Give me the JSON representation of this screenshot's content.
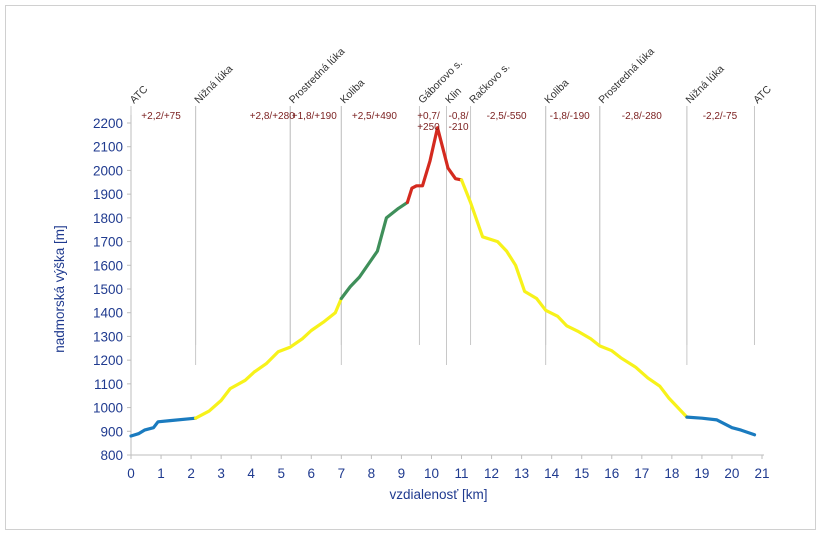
{
  "chart_data": {
    "type": "line",
    "title": "",
    "xlabel": "vzdialenosť [km]",
    "ylabel": "nadmorská výška [m]",
    "xlim": [
      0,
      21
    ],
    "ylim": [
      800,
      2200
    ],
    "xticks": [
      0,
      1,
      2,
      3,
      4,
      5,
      6,
      7,
      8,
      9,
      10,
      11,
      12,
      13,
      14,
      15,
      16,
      17,
      18,
      19,
      20,
      21
    ],
    "yticks": [
      800,
      900,
      1000,
      1100,
      1200,
      1300,
      1400,
      1500,
      1600,
      1700,
      1800,
      1900,
      2000,
      2100,
      2200
    ],
    "grid": false,
    "series": [
      {
        "color": "#1a7bbf",
        "points": [
          [
            0,
            880
          ],
          [
            0.25,
            890
          ],
          [
            0.45,
            905
          ],
          [
            0.75,
            915
          ],
          [
            0.9,
            940
          ],
          [
            1.3,
            945
          ],
          [
            2.15,
            955
          ]
        ]
      },
      {
        "color": "#f7f21a",
        "points": [
          [
            2.15,
            955
          ],
          [
            2.6,
            985
          ],
          [
            3.0,
            1030
          ],
          [
            3.3,
            1080
          ],
          [
            3.8,
            1115
          ],
          [
            4.1,
            1150
          ],
          [
            4.5,
            1185
          ],
          [
            4.9,
            1235
          ],
          [
            5.3,
            1255
          ],
          [
            5.7,
            1290
          ],
          [
            6.0,
            1325
          ],
          [
            6.4,
            1360
          ],
          [
            6.8,
            1400
          ],
          [
            7.0,
            1460
          ]
        ]
      },
      {
        "color": "#3f8f5a",
        "points": [
          [
            7.0,
            1460
          ],
          [
            7.3,
            1510
          ],
          [
            7.6,
            1550
          ],
          [
            7.9,
            1605
          ],
          [
            8.2,
            1660
          ],
          [
            8.5,
            1800
          ],
          [
            8.9,
            1840
          ],
          [
            9.2,
            1865
          ]
        ]
      },
      {
        "color": "#d42a1f",
        "points": [
          [
            9.2,
            1865
          ],
          [
            9.35,
            1925
          ],
          [
            9.5,
            1935
          ],
          [
            9.7,
            1935
          ],
          [
            9.95,
            2040
          ],
          [
            10.2,
            2180
          ],
          [
            10.55,
            2010
          ],
          [
            10.8,
            1965
          ],
          [
            11.0,
            1960
          ]
        ]
      },
      {
        "color": "#f7f21a",
        "points": [
          [
            11.0,
            1960
          ],
          [
            11.3,
            1865
          ],
          [
            11.7,
            1720
          ],
          [
            12.2,
            1700
          ],
          [
            12.5,
            1660
          ],
          [
            12.8,
            1600
          ],
          [
            13.1,
            1490
          ],
          [
            13.5,
            1460
          ],
          [
            13.8,
            1410
          ],
          [
            14.2,
            1385
          ],
          [
            14.5,
            1345
          ],
          [
            14.9,
            1320
          ],
          [
            15.3,
            1290
          ],
          [
            15.6,
            1260
          ],
          [
            16.0,
            1240
          ],
          [
            16.3,
            1210
          ],
          [
            16.8,
            1170
          ],
          [
            17.2,
            1125
          ],
          [
            17.6,
            1090
          ],
          [
            17.9,
            1040
          ],
          [
            18.5,
            960
          ]
        ]
      },
      {
        "color": "#1a7bbf",
        "points": [
          [
            18.5,
            960
          ],
          [
            19.0,
            955
          ],
          [
            19.5,
            948
          ],
          [
            20.0,
            915
          ],
          [
            20.3,
            905
          ],
          [
            20.75,
            885
          ]
        ]
      }
    ],
    "places": [
      {
        "km": 0,
        "name": "ATC"
      },
      {
        "km": 2.15,
        "name": "Nižná lúka"
      },
      {
        "km": 5.3,
        "name": "Prostredná lúka"
      },
      {
        "km": 7.0,
        "name": "Koliba"
      },
      {
        "km": 9.6,
        "name": "Gáborovo s."
      },
      {
        "km": 10.5,
        "name": "Klin"
      },
      {
        "km": 11.3,
        "name": "Račkovo s."
      },
      {
        "km": 13.8,
        "name": "Koliba"
      },
      {
        "km": 15.6,
        "name": "Prostredná lúka"
      },
      {
        "km": 18.5,
        "name": "Nižná lúka"
      },
      {
        "km": 20.75,
        "name": "ATC"
      }
    ],
    "segments": [
      {
        "km": 1.0,
        "lines": [
          "+2,2/+75"
        ]
      },
      {
        "km": 4.7,
        "lines": [
          "+2,8/+280"
        ]
      },
      {
        "km": 6.1,
        "lines": [
          "+1,8/+190"
        ]
      },
      {
        "km": 8.1,
        "lines": [
          "+2,5/+490"
        ]
      },
      {
        "km": 9.9,
        "lines": [
          "+0,7/",
          "+250"
        ]
      },
      {
        "km": 10.9,
        "lines": [
          "-0,8/",
          "-210"
        ]
      },
      {
        "km": 12.5,
        "lines": [
          "-2,5/-550"
        ]
      },
      {
        "km": 14.6,
        "lines": [
          "-1,8/-190"
        ]
      },
      {
        "km": 17.0,
        "lines": [
          "-2,8/-280"
        ]
      },
      {
        "km": 19.6,
        "lines": [
          "-2,2/-75"
        ]
      }
    ]
  }
}
